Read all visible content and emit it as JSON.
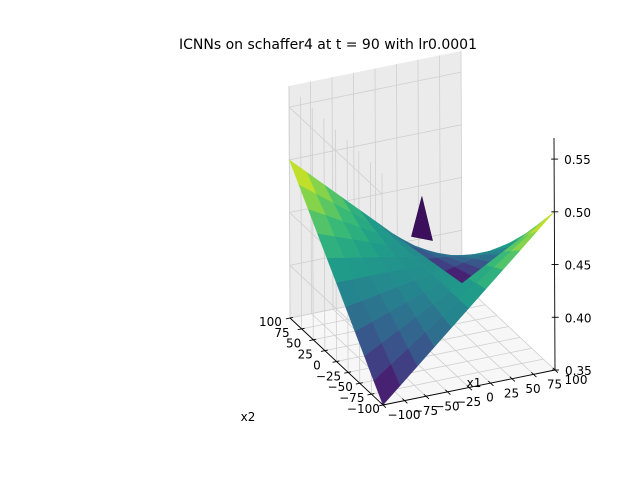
{
  "chart_data": {
    "type": "surface",
    "title": "ICNNs on schaffer4 at t = 90 with lr0.0001",
    "xlabel": "x1",
    "ylabel": "x2",
    "zlabel": "",
    "xlim": [
      -100,
      100
    ],
    "ylim": [
      -100,
      100
    ],
    "zlim": [
      0.35,
      0.57
    ],
    "xticks": [
      "−100",
      "−75",
      "−50",
      "−25",
      "0",
      "25",
      "50",
      "75",
      "100"
    ],
    "yticks": [
      "100",
      "75",
      "50",
      "25",
      "0",
      "−25",
      "−50",
      "−75",
      "−100"
    ],
    "zticks": [
      "0.35",
      "0.40",
      "0.45",
      "0.50",
      "0.55"
    ],
    "colormap": "viridis",
    "grid": true,
    "surface_corners": [
      {
        "x1": 100,
        "x2": 100,
        "z": 0.35
      },
      {
        "x1": -100,
        "x2": -100,
        "z": 0.35
      },
      {
        "x1": 100,
        "x2": -100,
        "z": 0.5
      },
      {
        "x1": -100,
        "x2": 100,
        "z": 0.5
      },
      {
        "x1": 0,
        "x2": 0,
        "z": 0.45
      }
    ]
  }
}
